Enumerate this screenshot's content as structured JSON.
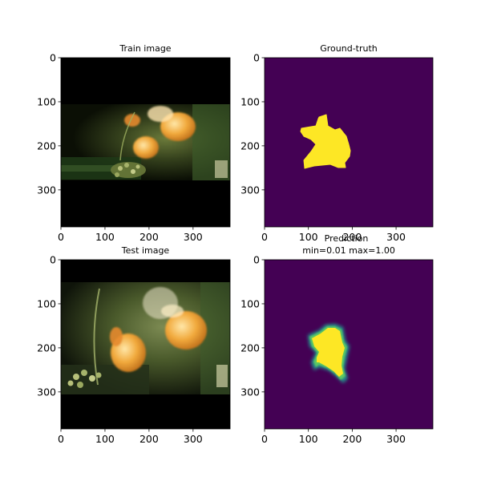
{
  "colors": {
    "mask_background": "#440154",
    "mask_foreground": "#fde725",
    "image_dark": "#000000"
  },
  "chart_data": [
    {
      "type": "image",
      "title": "Train image",
      "xticks": [
        0,
        100,
        200,
        300
      ],
      "yticks": [
        0,
        100,
        200,
        300
      ],
      "extent": [
        0,
        384
      ]
    },
    {
      "type": "heatmap",
      "title": "Ground-truth",
      "xticks": [
        0,
        100,
        200,
        300
      ],
      "yticks": [
        0,
        100,
        200,
        300
      ],
      "extent": [
        0,
        384
      ]
    },
    {
      "type": "image",
      "title": "Test image",
      "xticks": [
        0,
        100,
        200,
        300
      ],
      "yticks": [
        0,
        100,
        200,
        300
      ],
      "extent": [
        0,
        384
      ]
    },
    {
      "type": "heatmap",
      "title_line1": "Prediction",
      "title_line2": "min=0.01 max=1.00",
      "min": 0.01,
      "max": 1.0,
      "xticks": [
        0,
        100,
        200,
        300
      ],
      "yticks": [
        0,
        100,
        200,
        300
      ],
      "extent": [
        0,
        384
      ]
    }
  ]
}
